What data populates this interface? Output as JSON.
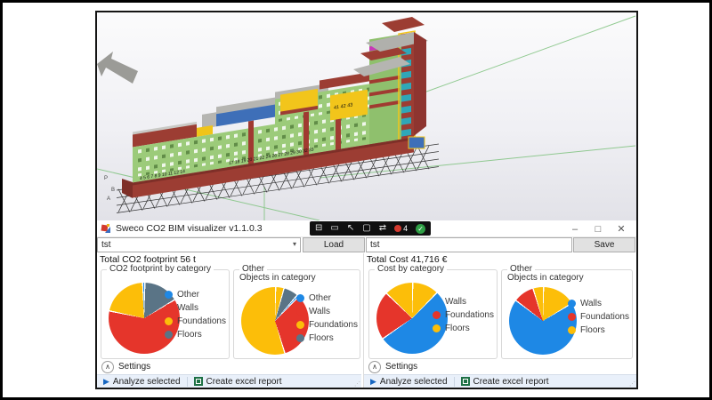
{
  "viewport": {
    "axis_labels": {
      "p": "P",
      "b": "B",
      "a": "A"
    },
    "grid_numbers_left": "4 5 6 7 8 9 10 11 12 14",
    "grid_numbers_mid": "17 18 19 20 21 22 24 26 27 28 29 30 32 33",
    "grid_numbers_upper": "41 42 43"
  },
  "icons": {
    "combo_arrow": "▾",
    "chevron_up": "∧",
    "play": "▶",
    "resize_grip": "⋰"
  },
  "window": {
    "title": "Sweco CO2 BIM visualizer v1.1.0.3",
    "capture_toolbar": {
      "glyphs": [
        "⊟",
        "▭",
        "↖",
        "▢",
        "⇄"
      ],
      "record_count": "4",
      "check": "✓"
    },
    "window_controls": {
      "minimize": "–",
      "maximize": "□",
      "close": "✕"
    },
    "file_bar": {
      "combo_value": "tst",
      "load": "Load",
      "field_value": "tst",
      "save": "Save"
    },
    "panels": [
      {
        "total": "Total CO2 footprint 56 t",
        "groups": [
          {
            "title": "CO2 footprint by category",
            "subtitle": "",
            "legend": [
              {
                "label": "Other",
                "color": "#1E88E5"
              },
              {
                "label": "Walls",
                "color": "#E5352B"
              },
              {
                "label": "Foundations",
                "color": "#FCBE09"
              },
              {
                "label": "Floors",
                "color": "#5A7486"
              }
            ]
          },
          {
            "title": "Other",
            "subtitle": "Objects in category",
            "legend": [
              {
                "label": "Other",
                "color": "#1E88E5"
              },
              {
                "label": "Walls",
                "color": "#E5352B"
              },
              {
                "label": "Foundations",
                "color": "#FCBE09"
              },
              {
                "label": "Floors",
                "color": "#5A7486"
              }
            ]
          }
        ],
        "settings": "Settings",
        "actions": [
          {
            "label": "Analyze selected"
          },
          {
            "label": "Create excel report"
          }
        ]
      },
      {
        "total": "Total Cost 41,716 €",
        "groups": [
          {
            "title": "Cost by category",
            "subtitle": "",
            "legend": [
              {
                "label": "Walls",
                "color": "#1E88E5"
              },
              {
                "label": "Foundations",
                "color": "#E5352B"
              },
              {
                "label": "Floors",
                "color": "#FCBE09"
              }
            ]
          },
          {
            "title": "Other",
            "subtitle": "Objects in category",
            "legend": [
              {
                "label": "Walls",
                "color": "#1E88E5"
              },
              {
                "label": "Foundations",
                "color": "#E5352B"
              },
              {
                "label": "Floors",
                "color": "#FCBE09"
              }
            ]
          }
        ],
        "settings": "Settings",
        "actions": [
          {
            "label": "Analyze selected"
          },
          {
            "label": "Create excel report"
          }
        ]
      }
    ]
  },
  "chart_data": [
    {
      "type": "pie",
      "title": "CO2 footprint by category",
      "total_label": "Total CO2 footprint 56 t",
      "labels": [
        "Other",
        "Walls",
        "Foundations",
        "Floors"
      ],
      "values_pct": [
        1,
        62,
        21,
        16
      ],
      "colors": [
        "#1E88E5",
        "#E5352B",
        "#FCBE09",
        "#5A7486"
      ],
      "legend_position": "right",
      "draw": [
        [
          "#5A7486",
          16
        ],
        [
          "#E5352B",
          62
        ],
        [
          "#FCBE09",
          21
        ],
        [
          "#1E88E5",
          1
        ]
      ]
    },
    {
      "type": "pie",
      "title": "Objects in category (Other)",
      "labels": [
        "Other",
        "Walls",
        "Foundations",
        "Floors"
      ],
      "values_pct": [
        1,
        33,
        59,
        7
      ],
      "colors": [
        "#1E88E5",
        "#E5352B",
        "#FCBE09",
        "#5A7486"
      ],
      "legend_position": "right",
      "draw": [
        [
          "#FCBE09",
          4
        ],
        [
          "#5A7486",
          7
        ],
        [
          "#1E88E5",
          1
        ],
        [
          "#E5352B",
          33
        ],
        [
          "#FCBE09",
          55
        ]
      ]
    },
    {
      "type": "pie",
      "title": "Cost by category",
      "total_label": "Total Cost 41,716 €",
      "labels": [
        "Walls",
        "Foundations",
        "Floors"
      ],
      "values_pct": [
        53,
        22,
        25
      ],
      "colors": [
        "#1E88E5",
        "#E5352B",
        "#FCBE09"
      ],
      "legend_position": "right",
      "draw": [
        [
          "#FCBE09",
          12
        ],
        [
          "#1E88E5",
          53
        ],
        [
          "#E5352B",
          22
        ],
        [
          "#FCBE09",
          13
        ]
      ]
    },
    {
      "type": "pie",
      "title": "Objects in category (Other)",
      "labels": [
        "Walls",
        "Foundations",
        "Floors"
      ],
      "values_pct": [
        69,
        10,
        21
      ],
      "colors": [
        "#1E88E5",
        "#E5352B",
        "#FCBE09"
      ],
      "legend_position": "right",
      "draw": [
        [
          "#FCBE09",
          16
        ],
        [
          "#1E88E5",
          69
        ],
        [
          "#E5352B",
          10
        ],
        [
          "#FCBE09",
          5
        ]
      ]
    }
  ]
}
